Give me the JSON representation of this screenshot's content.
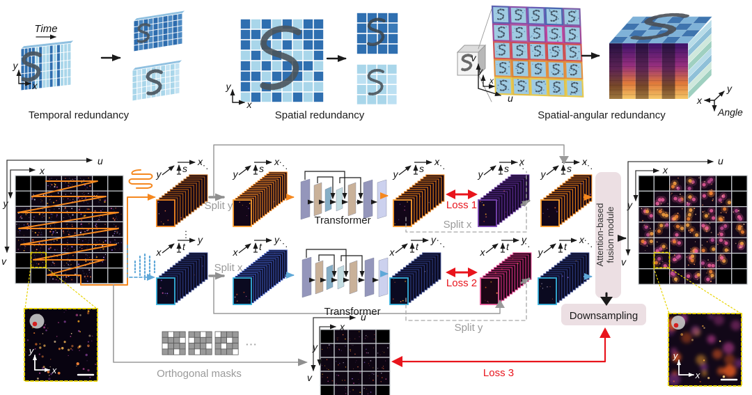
{
  "panels": {
    "temporal": {
      "time": "Time",
      "caption": "Temporal redundancy",
      "axis_y": "y",
      "axis_x": "x"
    },
    "spatial": {
      "caption": "Spatial redundancy",
      "axis_y": "y",
      "axis_x": "x"
    },
    "spatial_angular": {
      "caption": "Spatial-angular redundancy",
      "axis_v": "v",
      "axis_u": "u",
      "axis_y": "y",
      "axis_x": "x",
      "cube_axis_x": "x",
      "cube_axis_y": "y",
      "cube_axis_angle": "Angle"
    }
  },
  "pipeline": {
    "input_grid": {
      "axis_u": "u",
      "axis_x": "x",
      "axis_y": "y",
      "axis_v": "v"
    },
    "row1": {
      "triad": {
        "d": "y",
        "v": "s",
        "h": "x"
      },
      "dots": "⋱",
      "split_arrow": "Split y",
      "transformer": "Transformer",
      "loss": "Loss 1",
      "split_box": "Split x"
    },
    "row2": {
      "triad": {
        "d": "x",
        "v": "t",
        "h": "y"
      },
      "out_triad": {
        "d": "y",
        "v": "t",
        "h": "x"
      },
      "dots": "⋱",
      "dots_first": "⋮",
      "split_arrow": "Split x",
      "transformer": "Transformer",
      "loss": "Loss 2",
      "split_box": "Split y"
    },
    "masks": {
      "label": "Orthogonal masks",
      "ellipsis": "⋯"
    },
    "loss3": "Loss 3",
    "fusion": {
      "line1": "Attention-based",
      "line2": "fusion module"
    },
    "downsampling": "Downsampling",
    "down_grid": {
      "axis_u": "u",
      "axis_x": "x",
      "axis_y": "y",
      "axis_v": "v"
    },
    "output_grid": {
      "axis_u": "u",
      "axis_x": "x",
      "axis_y": "y",
      "axis_v": "v"
    },
    "inset_left": {
      "axis_y": "y",
      "axis_x": "x"
    },
    "inset_right": {
      "axis_y": "y",
      "axis_x": "x"
    }
  },
  "colors": {
    "orange": "#f5881f",
    "blue_arrow": "#5fa8d8",
    "red": "#e8141c",
    "gray": "#8f8f8f",
    "dark_blue": "#2f6fb0",
    "light_blue": "#a9d6ea",
    "panel_pink": "#ecdfe3",
    "purple_frame": "#5b2d8f",
    "pink_frame": "#d42f7f",
    "navy_frame": "#2c3a7e",
    "orange_frame": "#e87d12",
    "yellow": "#e8d400"
  }
}
